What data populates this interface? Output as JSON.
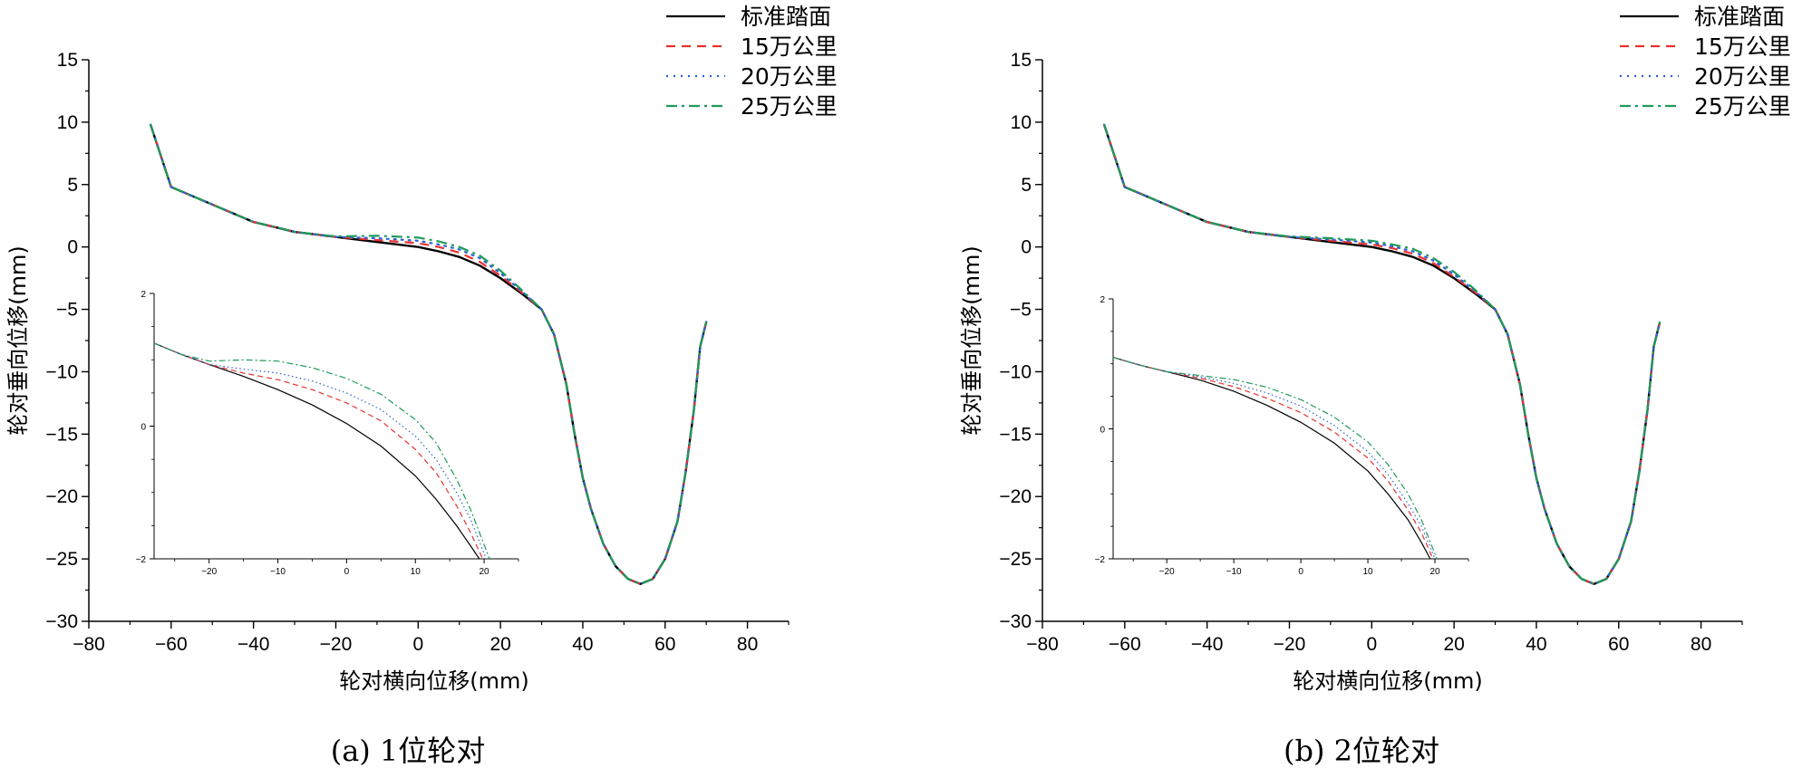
{
  "legend_labels": [
    "标准踏面",
    "15万公里",
    "20万公里",
    "25万公里"
  ],
  "series_colors": [
    "#000000",
    "#e8312f",
    "#2a62d4",
    "#1f9a5a"
  ],
  "series_dashes": [
    "",
    "10,7",
    "2,6",
    "12,5,3,5"
  ],
  "chart_data": [
    {
      "type": "line",
      "caption": "(a) 1位轮对",
      "xlabel": "轮对横向位移(mm)",
      "ylabel": "轮对垂向位移(mm)",
      "xlim": [
        -80,
        90
      ],
      "ylim": [
        -30,
        15
      ],
      "xticks": [
        -80,
        -60,
        -40,
        -20,
        0,
        20,
        40,
        60,
        80
      ],
      "yticks": [
        -30,
        -25,
        -20,
        -15,
        -10,
        -5,
        0,
        5,
        10,
        15
      ],
      "series": [
        {
          "name": "标准踏面",
          "x": [
            -65,
            -60,
            -50,
            -40,
            -30,
            -20,
            -10,
            0,
            5,
            10,
            15,
            20,
            25,
            30,
            33,
            36,
            38,
            40,
            42,
            45,
            48,
            51,
            54,
            57,
            60,
            63,
            65,
            67,
            68.5,
            70
          ],
          "y": [
            9.8,
            4.8,
            3.4,
            2.0,
            1.2,
            0.8,
            0.4,
            0.0,
            -0.35,
            -0.8,
            -1.5,
            -2.5,
            -3.7,
            -5.0,
            -7.0,
            -11.0,
            -15.0,
            -18.5,
            -21.0,
            -23.8,
            -25.6,
            -26.6,
            -27.0,
            -26.6,
            -25.0,
            -22.0,
            -18.0,
            -13.0,
            -8.0,
            -6.0
          ]
        },
        {
          "name": "15万公里",
          "x": [
            -65,
            -60,
            -50,
            -40,
            -30,
            -20,
            -10,
            0,
            5,
            10,
            15,
            20,
            25,
            30,
            33,
            36,
            38,
            40,
            42,
            45,
            48,
            51,
            54,
            57,
            60,
            63,
            65,
            67,
            68.5,
            70
          ],
          "y": [
            9.8,
            4.8,
            3.4,
            2.0,
            1.2,
            0.8,
            0.55,
            0.3,
            0.0,
            -0.45,
            -1.2,
            -2.3,
            -3.6,
            -5.0,
            -7.0,
            -11.0,
            -15.0,
            -18.5,
            -21.0,
            -23.8,
            -25.6,
            -26.6,
            -27.0,
            -26.6,
            -25.0,
            -22.0,
            -18.0,
            -13.0,
            -8.0,
            -6.0
          ]
        },
        {
          "name": "20万公里",
          "x": [
            -65,
            -60,
            -50,
            -40,
            -30,
            -20,
            -10,
            0,
            5,
            10,
            15,
            20,
            25,
            30,
            33,
            36,
            38,
            40,
            42,
            45,
            48,
            51,
            54,
            57,
            60,
            63,
            65,
            67,
            68.5,
            70
          ],
          "y": [
            9.8,
            4.8,
            3.4,
            2.0,
            1.2,
            0.8,
            0.7,
            0.5,
            0.2,
            -0.2,
            -0.9,
            -2.1,
            -3.5,
            -5.0,
            -7.0,
            -11.0,
            -15.0,
            -18.5,
            -21.0,
            -23.8,
            -25.6,
            -26.6,
            -27.0,
            -26.6,
            -25.0,
            -22.0,
            -18.0,
            -13.0,
            -8.0,
            -6.0
          ]
        },
        {
          "name": "25万公里",
          "x": [
            -65,
            -60,
            -50,
            -40,
            -30,
            -20,
            -10,
            0,
            5,
            10,
            15,
            20,
            25,
            30,
            33,
            36,
            38,
            40,
            42,
            45,
            48,
            51,
            54,
            57,
            60,
            63,
            65,
            67,
            68.5,
            70
          ],
          "y": [
            9.8,
            4.8,
            3.4,
            2.0,
            1.2,
            0.85,
            0.9,
            0.75,
            0.45,
            0.0,
            -0.7,
            -1.9,
            -3.4,
            -5.0,
            -7.0,
            -11.0,
            -15.0,
            -18.5,
            -21.0,
            -23.8,
            -25.6,
            -26.6,
            -27.0,
            -26.6,
            -25.0,
            -22.0,
            -18.0,
            -13.0,
            -8.0,
            -6.0
          ]
        }
      ],
      "inset": {
        "xlim": [
          -28,
          25
        ],
        "ylim": [
          -2,
          2
        ],
        "xticks": [
          -20,
          -10,
          0,
          10,
          20
        ],
        "yticks": [
          -2,
          0,
          2
        ],
        "series": [
          {
            "x": [
              -28,
              -24,
              -20,
              -15,
              -10,
              -5,
              0,
              5,
              10,
              13,
              16,
              18,
              19.3
            ],
            "y": [
              1.25,
              1.08,
              0.93,
              0.75,
              0.55,
              0.32,
              0.04,
              -0.3,
              -0.75,
              -1.1,
              -1.5,
              -1.8,
              -2.0
            ]
          },
          {
            "x": [
              -28,
              -24,
              -20,
              -15,
              -10,
              -5,
              0,
              5,
              10,
              13,
              16,
              18,
              19.8
            ],
            "y": [
              1.25,
              1.08,
              0.93,
              0.8,
              0.7,
              0.55,
              0.35,
              0.08,
              -0.35,
              -0.7,
              -1.2,
              -1.6,
              -2.0
            ]
          },
          {
            "x": [
              -28,
              -24,
              -20,
              -15,
              -10,
              -5,
              0,
              5,
              10,
              13,
              16,
              18,
              20.3
            ],
            "y": [
              1.25,
              1.08,
              0.93,
              0.86,
              0.8,
              0.68,
              0.5,
              0.25,
              -0.15,
              -0.5,
              -1.0,
              -1.4,
              -2.0
            ]
          },
          {
            "x": [
              -28,
              -24,
              -20,
              -15,
              -10,
              -5,
              0,
              5,
              10,
              13,
              16,
              18,
              20.8
            ],
            "y": [
              1.25,
              1.08,
              0.98,
              1.0,
              0.98,
              0.88,
              0.72,
              0.48,
              0.1,
              -0.25,
              -0.8,
              -1.25,
              -2.0
            ]
          }
        ]
      }
    },
    {
      "type": "line",
      "caption": "(b) 2位轮对",
      "xlabel": "轮对横向位移(mm)",
      "ylabel": "轮对垂向位移(mm)",
      "xlim": [
        -80,
        90
      ],
      "ylim": [
        -30,
        15
      ],
      "xticks": [
        -80,
        -60,
        -40,
        -20,
        0,
        20,
        40,
        60,
        80
      ],
      "yticks": [
        -30,
        -25,
        -20,
        -15,
        -10,
        -5,
        0,
        5,
        10,
        15
      ],
      "series": [
        {
          "name": "标准踏面",
          "x": [
            -65,
            -60,
            -50,
            -40,
            -30,
            -20,
            -10,
            0,
            5,
            10,
            15,
            20,
            25,
            30,
            33,
            36,
            38,
            40,
            42,
            45,
            48,
            51,
            54,
            57,
            60,
            63,
            65,
            67,
            68.5,
            70
          ],
          "y": [
            9.8,
            4.8,
            3.4,
            2.0,
            1.2,
            0.8,
            0.4,
            0.0,
            -0.35,
            -0.8,
            -1.5,
            -2.5,
            -3.7,
            -5.0,
            -7.0,
            -11.0,
            -15.0,
            -18.5,
            -21.0,
            -23.8,
            -25.6,
            -26.6,
            -27.0,
            -26.6,
            -25.0,
            -22.0,
            -18.0,
            -13.0,
            -8.0,
            -6.0
          ]
        },
        {
          "name": "15万公里",
          "x": [
            -65,
            -60,
            -50,
            -40,
            -30,
            -20,
            -10,
            0,
            5,
            10,
            15,
            20,
            25,
            30,
            33,
            36,
            38,
            40,
            42,
            45,
            48,
            51,
            54,
            57,
            60,
            63,
            65,
            67,
            68.5,
            70
          ],
          "y": [
            9.8,
            4.8,
            3.4,
            2.0,
            1.2,
            0.8,
            0.5,
            0.2,
            -0.1,
            -0.55,
            -1.3,
            -2.4,
            -3.6,
            -5.0,
            -7.0,
            -11.0,
            -15.0,
            -18.5,
            -21.0,
            -23.8,
            -25.6,
            -26.6,
            -27.0,
            -26.6,
            -25.0,
            -22.0,
            -18.0,
            -13.0,
            -8.0,
            -6.0
          ]
        },
        {
          "name": "20万公里",
          "x": [
            -65,
            -60,
            -50,
            -40,
            -30,
            -20,
            -10,
            0,
            5,
            10,
            15,
            20,
            25,
            30,
            33,
            36,
            38,
            40,
            42,
            45,
            48,
            51,
            54,
            57,
            60,
            63,
            65,
            67,
            68.5,
            70
          ],
          "y": [
            9.8,
            4.8,
            3.4,
            2.0,
            1.2,
            0.8,
            0.6,
            0.35,
            0.05,
            -0.35,
            -1.1,
            -2.2,
            -3.5,
            -5.0,
            -7.0,
            -11.0,
            -15.0,
            -18.5,
            -21.0,
            -23.8,
            -25.6,
            -26.6,
            -27.0,
            -26.6,
            -25.0,
            -22.0,
            -18.0,
            -13.0,
            -8.0,
            -6.0
          ]
        },
        {
          "name": "25万公里",
          "x": [
            -65,
            -60,
            -50,
            -40,
            -30,
            -20,
            -10,
            0,
            5,
            10,
            15,
            20,
            25,
            30,
            33,
            36,
            38,
            40,
            42,
            45,
            48,
            51,
            54,
            57,
            60,
            63,
            65,
            67,
            68.5,
            70
          ],
          "y": [
            9.8,
            4.8,
            3.4,
            2.0,
            1.2,
            0.85,
            0.7,
            0.5,
            0.2,
            -0.15,
            -0.9,
            -2.0,
            -3.4,
            -5.0,
            -7.0,
            -11.0,
            -15.0,
            -18.5,
            -21.0,
            -23.8,
            -25.6,
            -26.6,
            -27.0,
            -26.6,
            -25.0,
            -22.0,
            -18.0,
            -13.0,
            -8.0,
            -6.0
          ]
        }
      ],
      "inset": {
        "xlim": [
          -28,
          25
        ],
        "ylim": [
          -2,
          2
        ],
        "xticks": [
          -20,
          -10,
          0,
          10,
          20
        ],
        "yticks": [
          -2,
          0,
          2
        ],
        "series": [
          {
            "x": [
              -28,
              -24,
              -20,
              -15,
              -10,
              -5,
              0,
              5,
              10,
              13,
              16,
              18,
              19.3
            ],
            "y": [
              1.1,
              0.98,
              0.88,
              0.75,
              0.58,
              0.36,
              0.1,
              -0.22,
              -0.65,
              -1.0,
              -1.4,
              -1.75,
              -2.0
            ]
          },
          {
            "x": [
              -28,
              -24,
              -20,
              -15,
              -10,
              -5,
              0,
              5,
              10,
              13,
              16,
              18,
              19.7
            ],
            "y": [
              1.1,
              0.98,
              0.88,
              0.78,
              0.65,
              0.47,
              0.25,
              -0.05,
              -0.45,
              -0.8,
              -1.25,
              -1.6,
              -2.0
            ]
          },
          {
            "x": [
              -28,
              -24,
              -20,
              -15,
              -10,
              -5,
              0,
              5,
              10,
              13,
              16,
              18,
              20.0
            ],
            "y": [
              1.1,
              0.98,
              0.88,
              0.8,
              0.7,
              0.55,
              0.35,
              0.05,
              -0.35,
              -0.7,
              -1.15,
              -1.5,
              -2.0
            ]
          },
          {
            "x": [
              -28,
              -24,
              -20,
              -15,
              -10,
              -5,
              0,
              5,
              10,
              13,
              16,
              18,
              20.3
            ],
            "y": [
              1.1,
              0.98,
              0.88,
              0.82,
              0.76,
              0.64,
              0.45,
              0.18,
              -0.2,
              -0.55,
              -1.0,
              -1.4,
              -2.0
            ]
          }
        ]
      }
    }
  ]
}
